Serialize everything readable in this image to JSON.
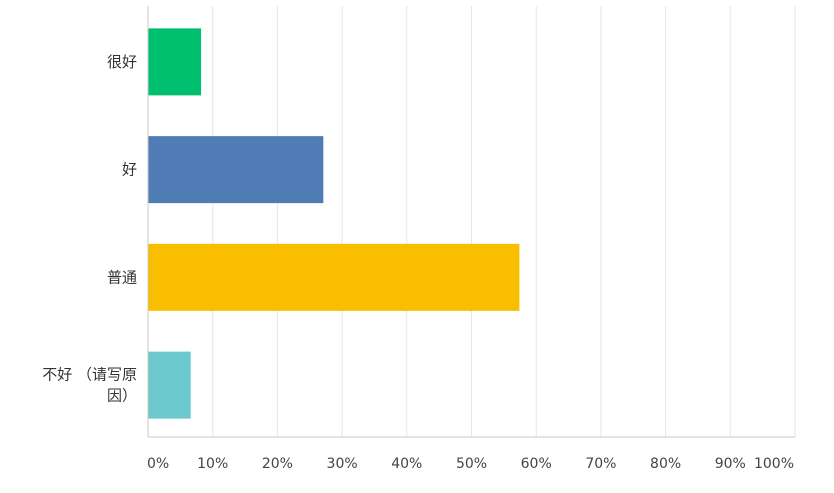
{
  "chart_data": {
    "type": "bar",
    "orientation": "horizontal",
    "categories": [
      "很好",
      "好",
      "普通",
      "不好 （请写原因）"
    ],
    "category_label_lines": [
      [
        "很好"
      ],
      [
        "好"
      ],
      [
        "普通"
      ],
      [
        "不好 （请写原",
        "因）"
      ]
    ],
    "values": [
      8.2,
      27.1,
      57.4,
      6.6
    ],
    "colors": [
      "#00BF6F",
      "#507CB6",
      "#F9BE00",
      "#6BC8CD"
    ],
    "x_ticks": [
      "0%",
      "10%",
      "20%",
      "30%",
      "40%",
      "50%",
      "60%",
      "70%",
      "80%",
      "90%",
      "100%"
    ],
    "xlim": [
      0,
      100
    ],
    "unit": "%",
    "grid": true,
    "title": "",
    "xlabel": "",
    "ylabel": ""
  }
}
